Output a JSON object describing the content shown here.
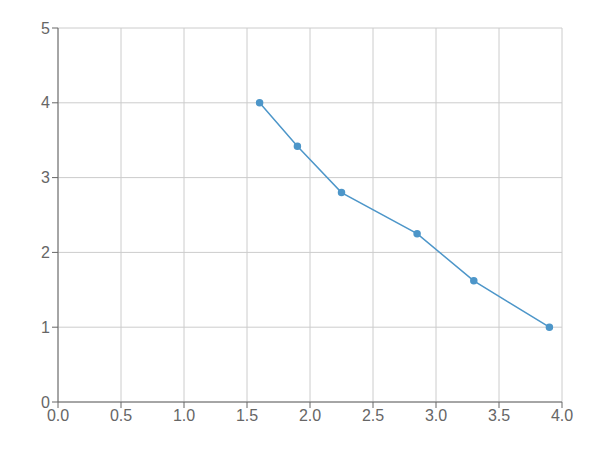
{
  "chart_data": {
    "type": "line",
    "x": [
      1.6,
      1.9,
      2.25,
      2.85,
      3.3,
      3.9
    ],
    "values": [
      4.0,
      3.42,
      2.8,
      2.25,
      1.62,
      1.0
    ],
    "xlim": [
      0,
      4
    ],
    "ylim": [
      0,
      5
    ],
    "xticks": [
      {
        "value": 0,
        "label": "0.0"
      },
      0.5,
      {
        "value": 1,
        "label": "1.0"
      },
      1.5,
      {
        "value": 2,
        "label": "2.0"
      },
      2.5,
      {
        "value": 3,
        "label": "3.0"
      },
      3.5,
      {
        "value": 4,
        "label": "4.0"
      }
    ],
    "yticks": [
      0,
      1,
      2,
      3,
      4,
      5
    ],
    "color": "#4d96c9",
    "marker": "circle",
    "grid": true
  }
}
